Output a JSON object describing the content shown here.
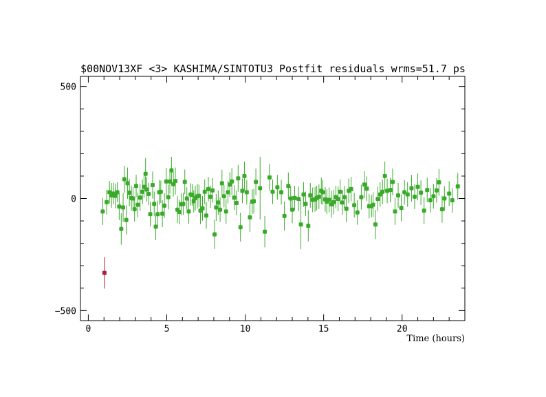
{
  "chart_data": {
    "type": "scatter",
    "title": "$00NOV13XF <3> KASHIMA/SINTOTU3 Postfit residuals wrms=51.7  ps",
    "xlabel": "Time (hours)",
    "ylabel": "",
    "xlim": [
      -0.5,
      24.0
    ],
    "ylim": [
      -545,
      545
    ],
    "x_ticks": [
      0,
      5,
      10,
      15,
      20
    ],
    "x_tick_labels": [
      "0",
      "5",
      "10",
      "15",
      "20"
    ],
    "y_ticks": [
      -500,
      0,
      500
    ],
    "y_tick_labels": [
      "−500",
      "0",
      "500"
    ],
    "grid": false,
    "error_bars": true,
    "series": [
      {
        "color": "#3aaa2a",
        "points": [
          {
            "x": 0.92,
            "y": -58,
            "err": 60
          },
          {
            "x": 1.17,
            "y": -16,
            "err": 55
          },
          {
            "x": 1.35,
            "y": 28,
            "err": 50
          },
          {
            "x": 1.48,
            "y": 14,
            "err": 55
          },
          {
            "x": 1.6,
            "y": 22,
            "err": 48
          },
          {
            "x": 1.72,
            "y": 12,
            "err": 55
          },
          {
            "x": 1.85,
            "y": 28,
            "err": 45
          },
          {
            "x": 1.97,
            "y": -36,
            "err": 60
          },
          {
            "x": 2.1,
            "y": -136,
            "err": 70
          },
          {
            "x": 2.22,
            "y": -40,
            "err": 65
          },
          {
            "x": 2.3,
            "y": 86,
            "err": 60
          },
          {
            "x": 2.42,
            "y": -96,
            "err": 65
          },
          {
            "x": 2.5,
            "y": 68,
            "err": 70
          },
          {
            "x": 2.62,
            "y": 26,
            "err": 60
          },
          {
            "x": 2.75,
            "y": 2,
            "err": 55
          },
          {
            "x": 2.85,
            "y": 0,
            "err": 50
          },
          {
            "x": 2.95,
            "y": -48,
            "err": 55
          },
          {
            "x": 3.05,
            "y": 56,
            "err": 50
          },
          {
            "x": 3.15,
            "y": -28,
            "err": 55
          },
          {
            "x": 3.3,
            "y": 4,
            "err": 60
          },
          {
            "x": 3.45,
            "y": 30,
            "err": 55
          },
          {
            "x": 3.55,
            "y": 52,
            "err": 50
          },
          {
            "x": 3.65,
            "y": 110,
            "err": 70
          },
          {
            "x": 3.72,
            "y": 40,
            "err": 55
          },
          {
            "x": 3.85,
            "y": 20,
            "err": 50
          },
          {
            "x": 3.95,
            "y": -70,
            "err": 55
          },
          {
            "x": 4.1,
            "y": 60,
            "err": 60
          },
          {
            "x": 4.2,
            "y": -24,
            "err": 55
          },
          {
            "x": 4.3,
            "y": -126,
            "err": 60
          },
          {
            "x": 4.42,
            "y": -70,
            "err": 60
          },
          {
            "x": 4.52,
            "y": 28,
            "err": 55
          },
          {
            "x": 4.62,
            "y": 30,
            "err": 50
          },
          {
            "x": 4.72,
            "y": -68,
            "err": 60
          },
          {
            "x": 4.85,
            "y": -32,
            "err": 55
          },
          {
            "x": 4.97,
            "y": 76,
            "err": 60
          },
          {
            "x": 5.1,
            "y": 6,
            "err": 55
          },
          {
            "x": 5.2,
            "y": 76,
            "err": 55
          },
          {
            "x": 5.3,
            "y": 126,
            "err": 60
          },
          {
            "x": 5.42,
            "y": 64,
            "err": 55
          },
          {
            "x": 5.55,
            "y": 78,
            "err": 60
          },
          {
            "x": 5.68,
            "y": -50,
            "err": 60
          },
          {
            "x": 5.8,
            "y": -60,
            "err": 55
          },
          {
            "x": 5.92,
            "y": -26,
            "err": 50
          },
          {
            "x": 6.05,
            "y": -24,
            "err": 50
          },
          {
            "x": 6.15,
            "y": 74,
            "err": 55
          },
          {
            "x": 6.28,
            "y": 0,
            "err": 50
          },
          {
            "x": 6.4,
            "y": -58,
            "err": 55
          },
          {
            "x": 6.52,
            "y": 18,
            "err": 50
          },
          {
            "x": 6.62,
            "y": 16,
            "err": 48
          },
          {
            "x": 6.72,
            "y": -12,
            "err": 50
          },
          {
            "x": 6.82,
            "y": 2,
            "err": 55
          },
          {
            "x": 6.95,
            "y": 10,
            "err": 55
          },
          {
            "x": 7.05,
            "y": 12,
            "err": 50
          },
          {
            "x": 7.15,
            "y": -54,
            "err": 60
          },
          {
            "x": 7.28,
            "y": -44,
            "err": 55
          },
          {
            "x": 7.42,
            "y": 30,
            "err": 55
          },
          {
            "x": 7.52,
            "y": -76,
            "err": 60
          },
          {
            "x": 7.65,
            "y": 42,
            "err": 55
          },
          {
            "x": 7.78,
            "y": 8,
            "err": 50
          },
          {
            "x": 7.92,
            "y": 36,
            "err": 55
          },
          {
            "x": 8.05,
            "y": -160,
            "err": 65
          },
          {
            "x": 8.15,
            "y": -40,
            "err": 60
          },
          {
            "x": 8.28,
            "y": -18,
            "err": 55
          },
          {
            "x": 8.4,
            "y": -50,
            "err": 55
          },
          {
            "x": 8.52,
            "y": 68,
            "err": 60
          },
          {
            "x": 8.65,
            "y": 10,
            "err": 50
          },
          {
            "x": 8.78,
            "y": -58,
            "err": 55
          },
          {
            "x": 8.9,
            "y": 28,
            "err": 50
          },
          {
            "x": 9.02,
            "y": 62,
            "err": 55
          },
          {
            "x": 9.15,
            "y": 76,
            "err": 60
          },
          {
            "x": 9.3,
            "y": 4,
            "err": 55
          },
          {
            "x": 9.45,
            "y": -20,
            "err": 55
          },
          {
            "x": 9.55,
            "y": 90,
            "err": 60
          },
          {
            "x": 9.7,
            "y": -128,
            "err": 65
          },
          {
            "x": 9.82,
            "y": 34,
            "err": 55
          },
          {
            "x": 9.95,
            "y": 100,
            "err": 65
          },
          {
            "x": 10.1,
            "y": 28,
            "err": 55
          },
          {
            "x": 10.3,
            "y": -84,
            "err": 65
          },
          {
            "x": 10.45,
            "y": -14,
            "err": 55
          },
          {
            "x": 10.55,
            "y": -12,
            "err": 55
          },
          {
            "x": 10.68,
            "y": 74,
            "err": 60
          },
          {
            "x": 10.95,
            "y": 46,
            "err": 140
          },
          {
            "x": 11.25,
            "y": -148,
            "err": 70
          },
          {
            "x": 11.55,
            "y": 94,
            "err": 60
          },
          {
            "x": 11.75,
            "y": 30,
            "err": 55
          },
          {
            "x": 12.05,
            "y": 50,
            "err": 55
          },
          {
            "x": 12.3,
            "y": 28,
            "err": 55
          },
          {
            "x": 12.5,
            "y": -78,
            "err": 65
          },
          {
            "x": 12.75,
            "y": 56,
            "err": 60
          },
          {
            "x": 12.9,
            "y": 0,
            "err": 55
          },
          {
            "x": 13.0,
            "y": -50,
            "err": 60
          },
          {
            "x": 13.15,
            "y": 2,
            "err": 55
          },
          {
            "x": 13.4,
            "y": -2,
            "err": 55
          },
          {
            "x": 13.55,
            "y": -116,
            "err": 110
          },
          {
            "x": 13.72,
            "y": 18,
            "err": 55
          },
          {
            "x": 13.85,
            "y": -24,
            "err": 55
          },
          {
            "x": 14.02,
            "y": -122,
            "err": 70
          },
          {
            "x": 14.15,
            "y": 14,
            "err": 55
          },
          {
            "x": 14.3,
            "y": -6,
            "err": 55
          },
          {
            "x": 14.45,
            "y": -4,
            "err": 55
          },
          {
            "x": 14.55,
            "y": 2,
            "err": 55
          },
          {
            "x": 14.7,
            "y": 8,
            "err": 55
          },
          {
            "x": 14.85,
            "y": 34,
            "err": 60
          },
          {
            "x": 14.95,
            "y": 28,
            "err": 55
          },
          {
            "x": 15.1,
            "y": -4,
            "err": 55
          },
          {
            "x": 15.2,
            "y": -14,
            "err": 55
          },
          {
            "x": 15.35,
            "y": -6,
            "err": 55
          },
          {
            "x": 15.5,
            "y": -26,
            "err": 60
          },
          {
            "x": 15.65,
            "y": -16,
            "err": 55
          },
          {
            "x": 15.78,
            "y": 6,
            "err": 50
          },
          {
            "x": 15.92,
            "y": -2,
            "err": 55
          },
          {
            "x": 16.05,
            "y": 30,
            "err": 55
          },
          {
            "x": 16.2,
            "y": -18,
            "err": 55
          },
          {
            "x": 16.32,
            "y": 6,
            "err": 50
          },
          {
            "x": 16.45,
            "y": -46,
            "err": 60
          },
          {
            "x": 16.6,
            "y": 34,
            "err": 55
          },
          {
            "x": 16.75,
            "y": 42,
            "err": 55
          },
          {
            "x": 16.95,
            "y": -30,
            "err": 55
          },
          {
            "x": 17.15,
            "y": -62,
            "err": 55
          },
          {
            "x": 17.4,
            "y": 6,
            "err": 55
          },
          {
            "x": 17.6,
            "y": 62,
            "err": 60
          },
          {
            "x": 17.75,
            "y": 44,
            "err": 55
          },
          {
            "x": 17.9,
            "y": -34,
            "err": 55
          },
          {
            "x": 18.05,
            "y": -34,
            "err": 50
          },
          {
            "x": 18.15,
            "y": -28,
            "err": 55
          },
          {
            "x": 18.3,
            "y": -116,
            "err": 65
          },
          {
            "x": 18.45,
            "y": -2,
            "err": 55
          },
          {
            "x": 18.6,
            "y": 18,
            "err": 55
          },
          {
            "x": 18.75,
            "y": 30,
            "err": 55
          },
          {
            "x": 18.9,
            "y": 100,
            "err": 65
          },
          {
            "x": 19.05,
            "y": 34,
            "err": 55
          },
          {
            "x": 19.25,
            "y": 38,
            "err": 55
          },
          {
            "x": 19.4,
            "y": 74,
            "err": 60
          },
          {
            "x": 19.55,
            "y": -58,
            "err": 60
          },
          {
            "x": 19.75,
            "y": 14,
            "err": 55
          },
          {
            "x": 19.95,
            "y": -42,
            "err": 60
          },
          {
            "x": 20.15,
            "y": 28,
            "err": 55
          },
          {
            "x": 20.35,
            "y": 18,
            "err": 55
          },
          {
            "x": 20.6,
            "y": 46,
            "err": 60
          },
          {
            "x": 20.8,
            "y": 8,
            "err": 55
          },
          {
            "x": 21.0,
            "y": 52,
            "err": 60
          },
          {
            "x": 21.2,
            "y": 26,
            "err": 55
          },
          {
            "x": 21.4,
            "y": -54,
            "err": 60
          },
          {
            "x": 21.6,
            "y": 38,
            "err": 55
          },
          {
            "x": 21.8,
            "y": -8,
            "err": 55
          },
          {
            "x": 22.0,
            "y": 10,
            "err": 55
          },
          {
            "x": 22.2,
            "y": 36,
            "err": 55
          },
          {
            "x": 22.35,
            "y": 72,
            "err": 60
          },
          {
            "x": 22.55,
            "y": -48,
            "err": 60
          },
          {
            "x": 22.7,
            "y": 0,
            "err": 55
          },
          {
            "x": 23.0,
            "y": 22,
            "err": 55
          },
          {
            "x": 23.2,
            "y": -8,
            "err": 55
          },
          {
            "x": 23.55,
            "y": 54,
            "err": 60
          }
        ]
      },
      {
        "color": "#b01c3c",
        "points": [
          {
            "x": 1.03,
            "y": -332,
            "err": 70
          }
        ]
      }
    ]
  }
}
